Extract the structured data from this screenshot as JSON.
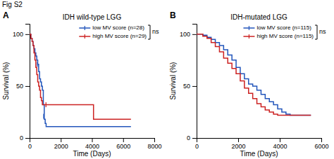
{
  "title": "Fig S2",
  "chart_data": [
    {
      "type": "step",
      "title": "IDH wild-type LGG",
      "panel_label": "A",
      "x_label": "Time (Days)",
      "y_label": "Survival (%)",
      "xlim": [
        0,
        8000
      ],
      "ylim": [
        0,
        110
      ],
      "xticks": [
        0,
        2000,
        4000,
        6000,
        8000
      ],
      "yticks": [
        0,
        50,
        100
      ],
      "grid": false,
      "legend": "upper right",
      "annotations": [
        "ns"
      ],
      "series": [
        {
          "name": "low MV score (n=28)",
          "color": "#2255bb",
          "x": [
            0,
            80,
            160,
            220,
            280,
            340,
            400,
            460,
            520,
            580,
            640,
            700,
            760,
            820,
            880,
            940,
            1000,
            1060,
            1120,
            6500
          ],
          "values": [
            100,
            96,
            93,
            89,
            86,
            82,
            79,
            75,
            71,
            64,
            57,
            54,
            50,
            46,
            32,
            18,
            14,
            11,
            11,
            11
          ],
          "censor_x": [
            500,
            900
          ],
          "censor_values": [
            71,
            21
          ]
        },
        {
          "name": "high MV score (n=29)",
          "color": "#cc2222",
          "x": [
            0,
            80,
            160,
            220,
            280,
            340,
            400,
            460,
            520,
            580,
            640,
            700,
            760,
            820,
            880,
            940,
            1000,
            1100,
            4050,
            4100,
            6300,
            6500
          ],
          "values": [
            100,
            96,
            93,
            89,
            82,
            75,
            68,
            61,
            54,
            50,
            46,
            39,
            36,
            32,
            32,
            32,
            32,
            32,
            32,
            18,
            18,
            18
          ],
          "censor_x": [
            1050
          ],
          "censor_values": [
            32
          ]
        }
      ]
    },
    {
      "type": "step",
      "title": "IDH-mutated LGG",
      "panel_label": "B",
      "x_label": "Time (Days)",
      "y_label": "Survival (%)",
      "xlim": [
        0,
        6000
      ],
      "ylim": [
        0,
        110
      ],
      "xticks": [
        0,
        2000,
        4000,
        6000
      ],
      "yticks": [
        0,
        50,
        100
      ],
      "grid": false,
      "legend": "upper right",
      "annotations": [
        "ns"
      ],
      "series": [
        {
          "name": "low MV score (n=115)",
          "color": "#2255bb",
          "x": [
            0,
            300,
            500,
            700,
            900,
            1100,
            1300,
            1500,
            1700,
            1900,
            2100,
            2300,
            2500,
            2700,
            2900,
            3100,
            3300,
            3500,
            3700,
            3900,
            4100,
            4300,
            4500,
            4700,
            5500
          ],
          "values": [
            100,
            99,
            97,
            95,
            92,
            89,
            85,
            80,
            75,
            68,
            62,
            57,
            52,
            50,
            46,
            42,
            38,
            35,
            32,
            28,
            25,
            23,
            22,
            22,
            22
          ],
          "censor_x": [],
          "censor_values": []
        },
        {
          "name": "high MV score (n=115)",
          "color": "#cc2222",
          "x": [
            0,
            300,
            500,
            700,
            900,
            1100,
            1300,
            1500,
            1700,
            1900,
            2100,
            2300,
            2500,
            2700,
            2900,
            3100,
            3300,
            3500,
            3700,
            3900,
            4100,
            4300,
            5500
          ],
          "values": [
            100,
            98,
            96,
            92,
            88,
            83,
            77,
            72,
            67,
            62,
            55,
            48,
            43,
            38,
            33,
            30,
            27,
            25,
            23,
            22,
            22,
            22,
            22
          ],
          "censor_x": [],
          "censor_values": []
        }
      ]
    }
  ]
}
